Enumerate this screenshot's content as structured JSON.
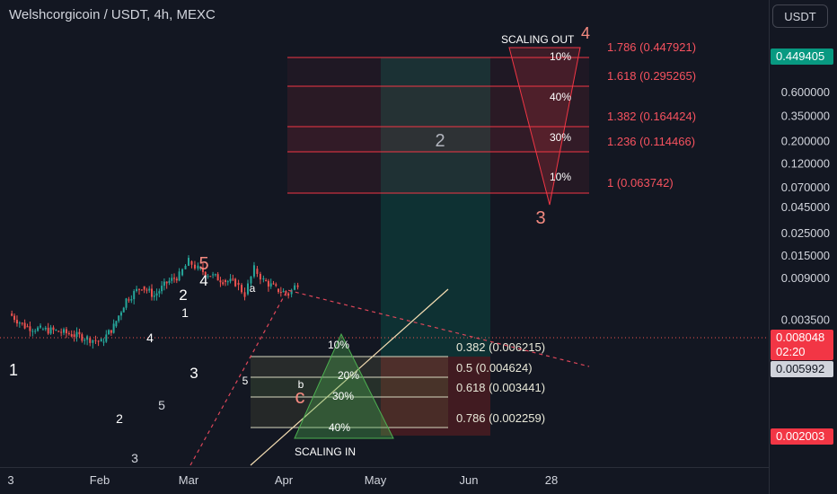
{
  "header": {
    "title": "Welshcorgicoin / USDT, 4h, MEXC",
    "currency_button": "USDT"
  },
  "price_axis": {
    "ticks": [
      "0.600000",
      "0.350000",
      "0.200000",
      "0.120000",
      "0.070000",
      "0.045000",
      "0.025000",
      "0.015000",
      "0.003500"
    ],
    "partial_tick": "0.009000",
    "current_price": "0.008048",
    "countdown": "02:20",
    "tag_green": "0.449405",
    "tag_grey": "0.005992",
    "tag_red": "0.002003"
  },
  "time_axis": {
    "labels": [
      "3",
      "Feb",
      "Mar",
      "Apr",
      "May",
      "Jun",
      "28"
    ]
  },
  "colors": {
    "background": "#131722",
    "up": "#26a69a",
    "down": "#ef5350",
    "fib_line": "#f23645",
    "fib_text": "#f7525f",
    "wave_white": "#ffffff",
    "wave_salmon": "#f48a80",
    "triangle_green": "#4caf50",
    "triangle_red": "#f23645",
    "trend_line": "#f5deb3"
  },
  "chart_data": {
    "type": "candlestick",
    "symbol": "Welshcorgicoin / USDT",
    "interval": "4h",
    "exchange": "MEXC",
    "y_scale": "log",
    "ylim": [
      0.0025,
      0.8
    ],
    "series": [
      {
        "name": "price",
        "points": [
          [
            "Jan 3",
            0.004
          ],
          [
            "Jan 8",
            0.003
          ],
          [
            "Jan 13",
            0.0028
          ],
          [
            "Jan 18",
            0.0027
          ],
          [
            "Jan 23",
            0.0025
          ],
          [
            "Jan 28",
            0.0023
          ],
          [
            "Feb 1",
            0.0021
          ],
          [
            "Feb 5",
            0.003
          ],
          [
            "Feb 9",
            0.0055
          ],
          [
            "Feb 14",
            0.0074
          ],
          [
            "Feb 18",
            0.006
          ],
          [
            "Feb 22",
            0.008
          ],
          [
            "Feb 26",
            0.0095
          ],
          [
            "Mar 1",
            0.013
          ],
          [
            "Mar 4",
            0.011
          ],
          [
            "Mar 8",
            0.0095
          ],
          [
            "Mar 12",
            0.0085
          ],
          [
            "Mar 16",
            0.008
          ],
          [
            "Mar 19",
            0.0062
          ],
          [
            "Mar 22",
            0.011
          ],
          [
            "Mar 25",
            0.0085
          ],
          [
            "Mar 29",
            0.007
          ],
          [
            "Apr 2",
            0.0062
          ],
          [
            "Apr 5",
            0.008
          ]
        ]
      }
    ],
    "fib_extension": [
      {
        "label": "1.786 (0.447921)",
        "ratio": 1.786,
        "price": 0.447921
      },
      {
        "label": "1.618 (0.295265)",
        "ratio": 1.618,
        "price": 0.295265
      },
      {
        "label": "1.382 (0.164424)",
        "ratio": 1.382,
        "price": 0.164424
      },
      {
        "label": "1.236 (0.114466)",
        "ratio": 1.236,
        "price": 0.114466
      },
      {
        "label": "1 (0.063742)",
        "ratio": 1,
        "price": 0.063742
      }
    ],
    "fib_retracement": [
      {
        "label": "0.382 (0.006215)",
        "ratio": 0.382,
        "price": 0.006215
      },
      {
        "label": "0.5 (0.004624)",
        "ratio": 0.5,
        "price": 0.004624
      },
      {
        "label": "0.618 (0.003441)",
        "ratio": 0.618,
        "price": 0.003441
      },
      {
        "label": "0.786 (0.002259)",
        "ratio": 0.786,
        "price": 0.002259
      }
    ],
    "annotations": {
      "scaling_out": "SCALING OUT",
      "scaling_in": "SCALING IN",
      "scaling_out_pcts": [
        "10%",
        "40%",
        "30%",
        "10%"
      ],
      "scaling_in_pcts": [
        "10%",
        "20%",
        "30%",
        "40%"
      ],
      "wave_labels": [
        "1",
        "2",
        "3",
        "4",
        "5",
        "1",
        "2",
        "3",
        "4",
        "5",
        "a",
        "b",
        "c",
        "2",
        "3",
        "4",
        "5"
      ]
    }
  }
}
